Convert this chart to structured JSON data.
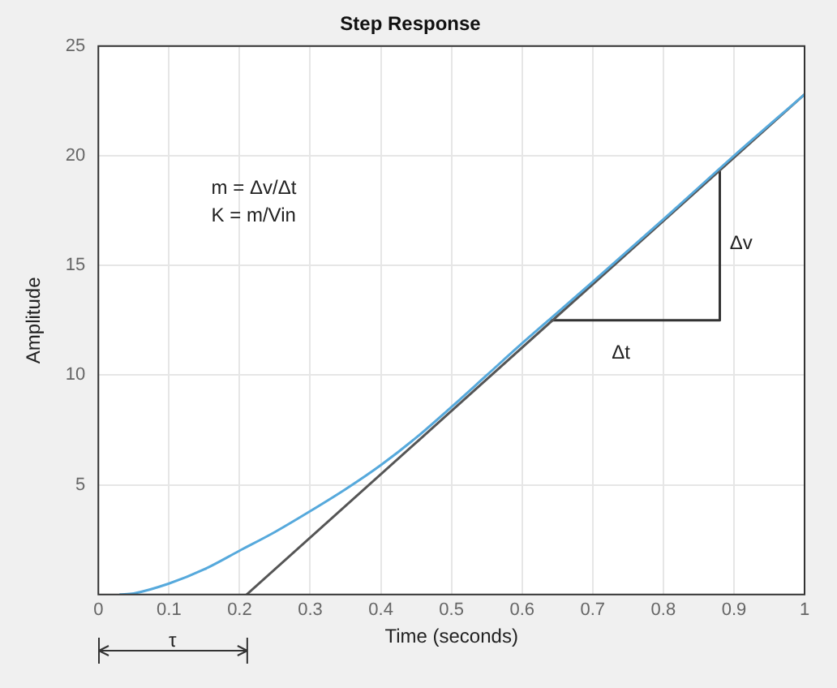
{
  "chart_data": {
    "type": "line",
    "title": "Step Response",
    "xlabel": "Time (seconds)",
    "ylabel": "Amplitude",
    "xlim": [
      0,
      1
    ],
    "xticks": [
      0,
      0.1,
      0.2,
      0.3,
      0.4,
      0.5,
      0.6,
      0.7,
      0.8,
      0.9,
      1
    ],
    "ylim": [
      0,
      25
    ],
    "yticks": [
      5,
      10,
      15,
      20,
      25
    ],
    "grid": true,
    "legend": false,
    "marker": "none",
    "line_style": "solid",
    "series": [
      {
        "color": "#56a9dc",
        "x": [
          0.03,
          0.05,
          0.1,
          0.15,
          0.2,
          0.25,
          0.3,
          0.35,
          0.4,
          0.45,
          0.5,
          0.55,
          0.6,
          0.65,
          0.7,
          0.8,
          0.9,
          1
        ],
        "values": [
          0,
          0.05,
          0.5,
          1.15,
          2.0,
          2.85,
          3.8,
          4.8,
          5.9,
          7.15,
          8.55,
          10.0,
          11.45,
          12.85,
          14.25,
          17.1,
          20.0,
          22.8
        ]
      },
      {
        "color": "#555555",
        "x": [
          0.21,
          1
        ],
        "values": [
          0,
          22.8
        ]
      },
      {
        "color": "#333333",
        "x": [
          0.64,
          0.88,
          0.88
        ],
        "values": [
          12.5,
          12.5,
          19.3
        ]
      }
    ],
    "annotations": [
      "m = Δv/Δt",
      "K = m/Vin",
      "Δt",
      "Δv",
      "τ"
    ]
  }
}
